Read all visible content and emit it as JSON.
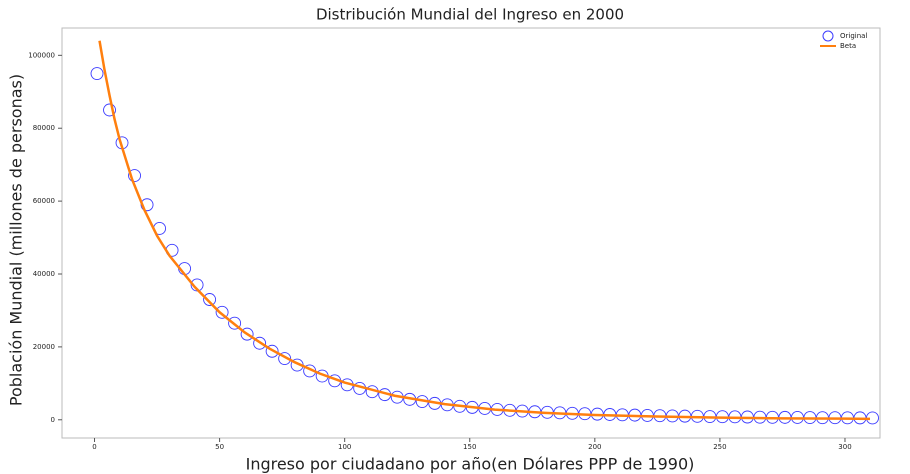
{
  "chart_data": {
    "type": "scatter",
    "title": "Distribución Mundial del Ingreso en 2000",
    "xlabel": "Ingreso por ciudadano por año(en Dólares PPP de 1990)",
    "ylabel": "Población Mundial (millones de personas)",
    "xlim": [
      -13,
      314
    ],
    "xticks": [
      0,
      50,
      100,
      150,
      200,
      250,
      300
    ],
    "ylim": [
      -5000,
      107500
    ],
    "yticks": [
      0,
      20000,
      40000,
      60000,
      80000,
      100000
    ],
    "legend": "upper right",
    "series": [
      {
        "name": "Original",
        "color": "#3b3bff",
        "style": "circle",
        "x": [
          1,
          6,
          11,
          16,
          21,
          26,
          31,
          36,
          41,
          46,
          51,
          56,
          61,
          66,
          71,
          76,
          81,
          86,
          91,
          96,
          101,
          106,
          111,
          116,
          121,
          126,
          131,
          136,
          141,
          146,
          151,
          156,
          161,
          166,
          171,
          176,
          181,
          186,
          191,
          196,
          201,
          206,
          211,
          216,
          221,
          226,
          231,
          236,
          241,
          246,
          251,
          256,
          261,
          266,
          271,
          276,
          281,
          286,
          291,
          296,
          301,
          306,
          311
        ],
        "values": [
          95000,
          85000,
          76000,
          67000,
          59000,
          52500,
          46500,
          41500,
          37000,
          33000,
          29500,
          26500,
          23500,
          21000,
          18800,
          16800,
          15000,
          13400,
          12000,
          10700,
          9600,
          8600,
          7700,
          6900,
          6200,
          5600,
          5000,
          4500,
          4100,
          3700,
          3400,
          3100,
          2850,
          2600,
          2400,
          2200,
          2050,
          1900,
          1780,
          1660,
          1550,
          1450,
          1360,
          1280,
          1200,
          1130,
          1060,
          1000,
          940,
          890,
          840,
          800,
          760,
          720,
          690,
          660,
          630,
          600,
          580,
          560,
          540,
          520,
          500
        ]
      },
      {
        "name": "Beta",
        "color": "#ff7f0e",
        "style": "line",
        "x": [
          2,
          4,
          6,
          8,
          10,
          15,
          20,
          25,
          30,
          40,
          50,
          60,
          70,
          80,
          90,
          100,
          120,
          140,
          160,
          180,
          200,
          225,
          250,
          275,
          300,
          310
        ],
        "values": [
          104000,
          96000,
          89000,
          82500,
          77000,
          66000,
          57500,
          50500,
          45000,
          36500,
          29500,
          24000,
          19500,
          15800,
          12700,
          10200,
          6600,
          4300,
          2800,
          1900,
          1300,
          900,
          600,
          400,
          300,
          250
        ]
      }
    ]
  }
}
